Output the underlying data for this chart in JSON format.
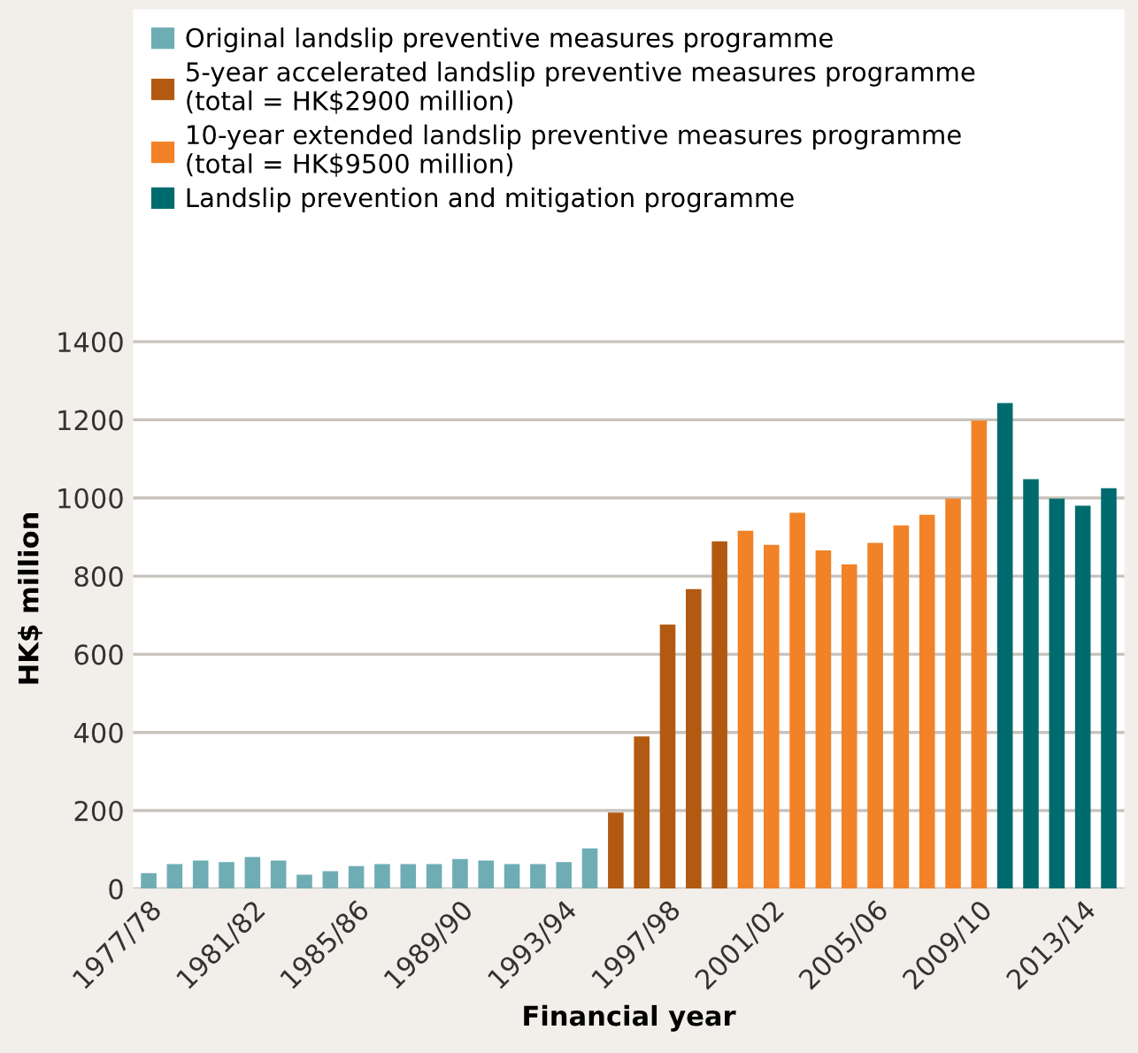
{
  "chart_data": {
    "type": "bar",
    "xlabel": "Financial year",
    "ylabel": "HK$ million",
    "categories": [
      "1977/78",
      null,
      null,
      null,
      "1981/82",
      null,
      null,
      null,
      "1985/86",
      null,
      null,
      null,
      "1989/90",
      null,
      null,
      null,
      "1993/94",
      null,
      null,
      null,
      "1997/98",
      null,
      null,
      null,
      "2001/02",
      null,
      null,
      null,
      "2005/06",
      null,
      null,
      null,
      "2009/10",
      null,
      null,
      null,
      "2013/14",
      null
    ],
    "series": [
      {
        "name": "Original landslip preventive measures programme",
        "color": "#6fadb5",
        "values": [
          40,
          63,
          72,
          68,
          81,
          72,
          36,
          45,
          58,
          63,
          63,
          63,
          76,
          72,
          63,
          63,
          68,
          103,
          null,
          null,
          null,
          null,
          null,
          null,
          null,
          null,
          null,
          null,
          null,
          null,
          null,
          null,
          null,
          null,
          null,
          null,
          null,
          null
        ]
      },
      {
        "name": "5-year accelerated landslip preventive measures programme\n(total = HK$2900 million)",
        "color": "#b25a12",
        "values": [
          null,
          null,
          null,
          null,
          null,
          null,
          null,
          null,
          null,
          null,
          null,
          null,
          null,
          null,
          null,
          null,
          null,
          null,
          195,
          390,
          676,
          767,
          889,
          null,
          null,
          null,
          null,
          null,
          null,
          null,
          null,
          null,
          null,
          null,
          null,
          null,
          null,
          null
        ]
      },
      {
        "name": "10-year extended landslip preventive measures programme\n(total = HK$9500 million)",
        "color": "#f28227",
        "values": [
          null,
          null,
          null,
          null,
          null,
          null,
          null,
          null,
          null,
          null,
          null,
          null,
          null,
          null,
          null,
          null,
          null,
          null,
          null,
          null,
          null,
          null,
          null,
          916,
          880,
          962,
          866,
          830,
          885,
          930,
          957,
          998,
          1198,
          null,
          null,
          null,
          null,
          null
        ]
      },
      {
        "name": "Landslip prevention and mitigation programme",
        "color": "#006b6e",
        "values": [
          null,
          null,
          null,
          null,
          null,
          null,
          null,
          null,
          null,
          null,
          null,
          null,
          null,
          null,
          null,
          null,
          null,
          null,
          null,
          null,
          null,
          null,
          null,
          null,
          null,
          null,
          null,
          null,
          null,
          null,
          null,
          null,
          null,
          1243,
          1048,
          998,
          980,
          1025
        ]
      }
    ],
    "ylim": [
      0,
      2250
    ],
    "yticks": [
      0,
      200,
      400,
      600,
      800,
      1000,
      1200,
      1400
    ],
    "grid": "y",
    "legend": "top left"
  }
}
